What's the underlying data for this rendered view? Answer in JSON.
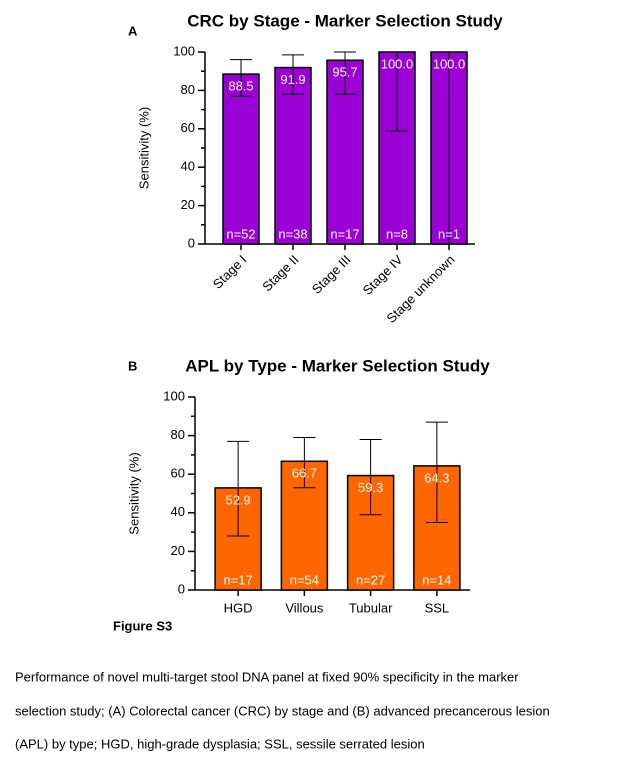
{
  "panel_labels": [
    "A",
    "B"
  ],
  "figure_label": "Figure S3",
  "caption": [
    "Performance of novel multi-target stool DNA panel at fixed 90% specificity in the marker",
    "selection study; (A) Colorectal cancer (CRC) by stage and (B) advanced precancerous lesion",
    "(APL) by type; HGD, high-grade dysplasia; SSL, sessile serrated lesion"
  ],
  "chart_data": [
    {
      "type": "bar",
      "title": "CRC by Stage - Marker Selection Study",
      "y_label": "Sensitivity (%)",
      "categories": [
        "Stage I",
        "Stage II",
        "Stage III",
        "Stage IV",
        "Stage unknown"
      ],
      "values": [
        88.5,
        91.9,
        95.7,
        100.0,
        100.0
      ],
      "value_labels": [
        "88.5",
        "91.9",
        "95.7",
        "100.0",
        "100.0"
      ],
      "ci_low": [
        77,
        78,
        78,
        59,
        0
      ],
      "ci_high": [
        96,
        98.5,
        100,
        100,
        100
      ],
      "n_labels": [
        "n=52",
        "n=38",
        "n=17",
        "n=8",
        "n=1"
      ],
      "color": "#9b00d6",
      "ylim": [
        0,
        100
      ],
      "yticks": [
        0,
        20,
        40,
        60,
        80,
        100
      ],
      "minor_yticks": [
        10,
        30,
        50,
        70,
        90
      ],
      "grid": false,
      "rotate_x_labels": true
    },
    {
      "type": "bar",
      "title": "APL by Type - Marker Selection Study",
      "y_label": "Sensitivity (%)",
      "categories": [
        "HGD",
        "Villous",
        "Tubular",
        "SSL"
      ],
      "values": [
        52.9,
        66.7,
        59.3,
        64.3
      ],
      "ci_low": [
        28,
        53,
        39,
        35
      ],
      "ci_high": [
        77,
        79,
        78,
        87
      ],
      "n_labels": [
        "n=17",
        "n=54",
        "n=27",
        "n=14"
      ],
      "color": "#ff6600",
      "ylim": [
        0,
        100
      ],
      "yticks": [
        0,
        20,
        40,
        60,
        80,
        100
      ],
      "minor_yticks": [
        10,
        30,
        50,
        70,
        90
      ],
      "grid": false,
      "rotate_x_labels": false
    }
  ]
}
